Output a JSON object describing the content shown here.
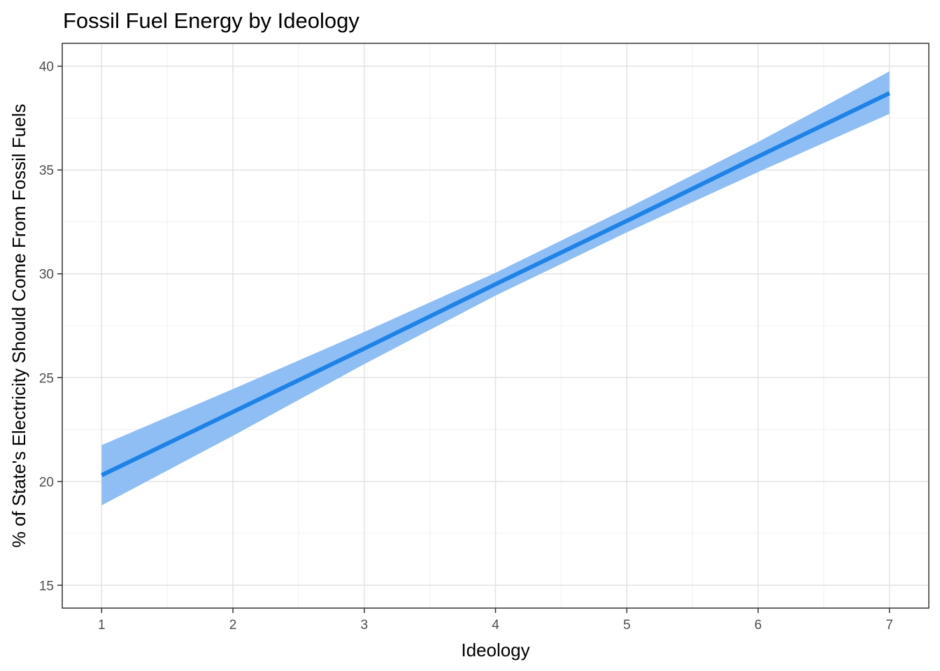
{
  "chart_data": {
    "type": "line",
    "title": "Fossil Fuel Energy by Ideology",
    "xlabel": "Ideology",
    "ylabel": "% of State's Electricity Should Come From Fossil Fuels",
    "xlim": [
      0.7,
      7.3
    ],
    "ylim": [
      13.9,
      41.1
    ],
    "x_ticks": [
      1,
      2,
      3,
      4,
      5,
      6,
      7
    ],
    "y_ticks": [
      15,
      20,
      25,
      30,
      35,
      40
    ],
    "x_minor_ticks": [
      1.5,
      2.5,
      3.5,
      4.5,
      5.5,
      6.5
    ],
    "y_minor_ticks": [
      17.5,
      22.5,
      27.5,
      32.5,
      37.5
    ],
    "grid": true,
    "legend": "none",
    "series": [
      {
        "x": [
          1,
          2,
          3,
          4,
          5,
          6,
          7
        ],
        "y": [
          20.3,
          23.35,
          26.4,
          29.5,
          32.55,
          35.65,
          38.7
        ],
        "ci_lower": [
          18.85,
          22.2,
          25.65,
          28.95,
          32.0,
          34.9,
          37.7
        ],
        "ci_upper": [
          21.75,
          24.45,
          27.2,
          30.05,
          33.15,
          36.35,
          39.75
        ],
        "color": "#1e82e6",
        "ribbon_color": "#8fbef5"
      }
    ]
  }
}
